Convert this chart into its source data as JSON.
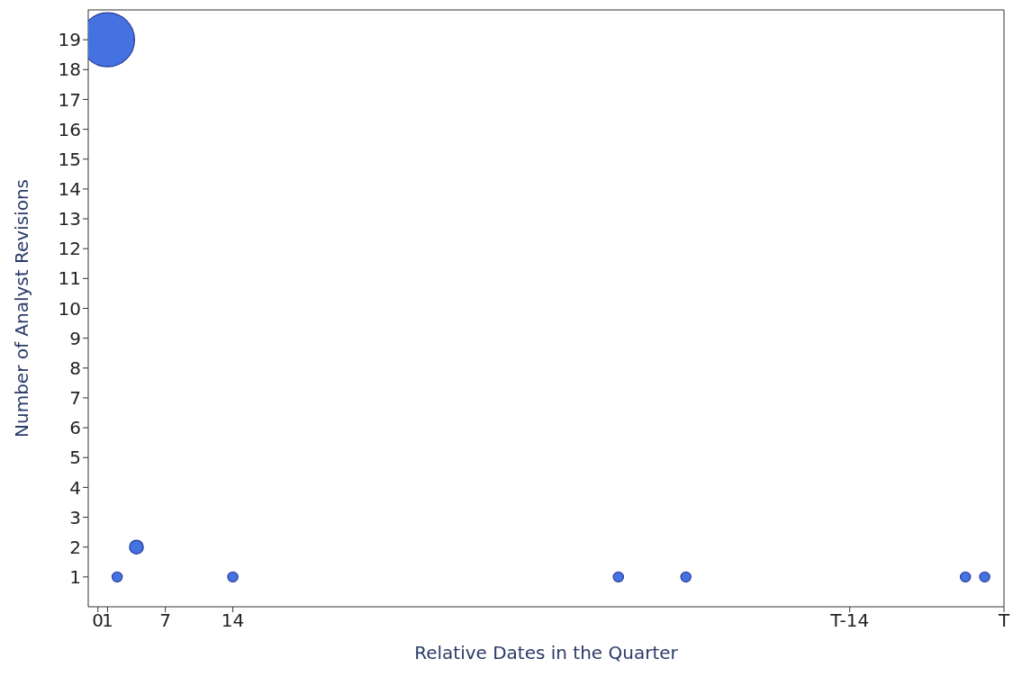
{
  "chart_data": {
    "type": "bubble",
    "xlabel": "Relative Dates in the Quarter",
    "ylabel": "Number of Analyst Revisions",
    "x": [
      1,
      2,
      4,
      14,
      54,
      61,
      90,
      92
    ],
    "values": [
      19,
      1,
      2,
      1,
      1,
      1,
      1,
      1
    ],
    "sizes": [
      1,
      0.035,
      0.065,
      0.035,
      0.035,
      0.035,
      0.035,
      0.035
    ],
    "color": "#4472e0",
    "xlim": [
      -1,
      94
    ],
    "xticks": [
      0,
      1,
      7,
      14,
      {
        "value": 78,
        "label": "T-14"
      },
      {
        "value": 94,
        "label": "T"
      }
    ],
    "ylim": [
      0,
      20
    ],
    "yticks": [
      1,
      2,
      3,
      4,
      5,
      6,
      7,
      8,
      9,
      10,
      11,
      12,
      13,
      14,
      15,
      16,
      17,
      18,
      19
    ],
    "grid": false,
    "legend": false
  }
}
